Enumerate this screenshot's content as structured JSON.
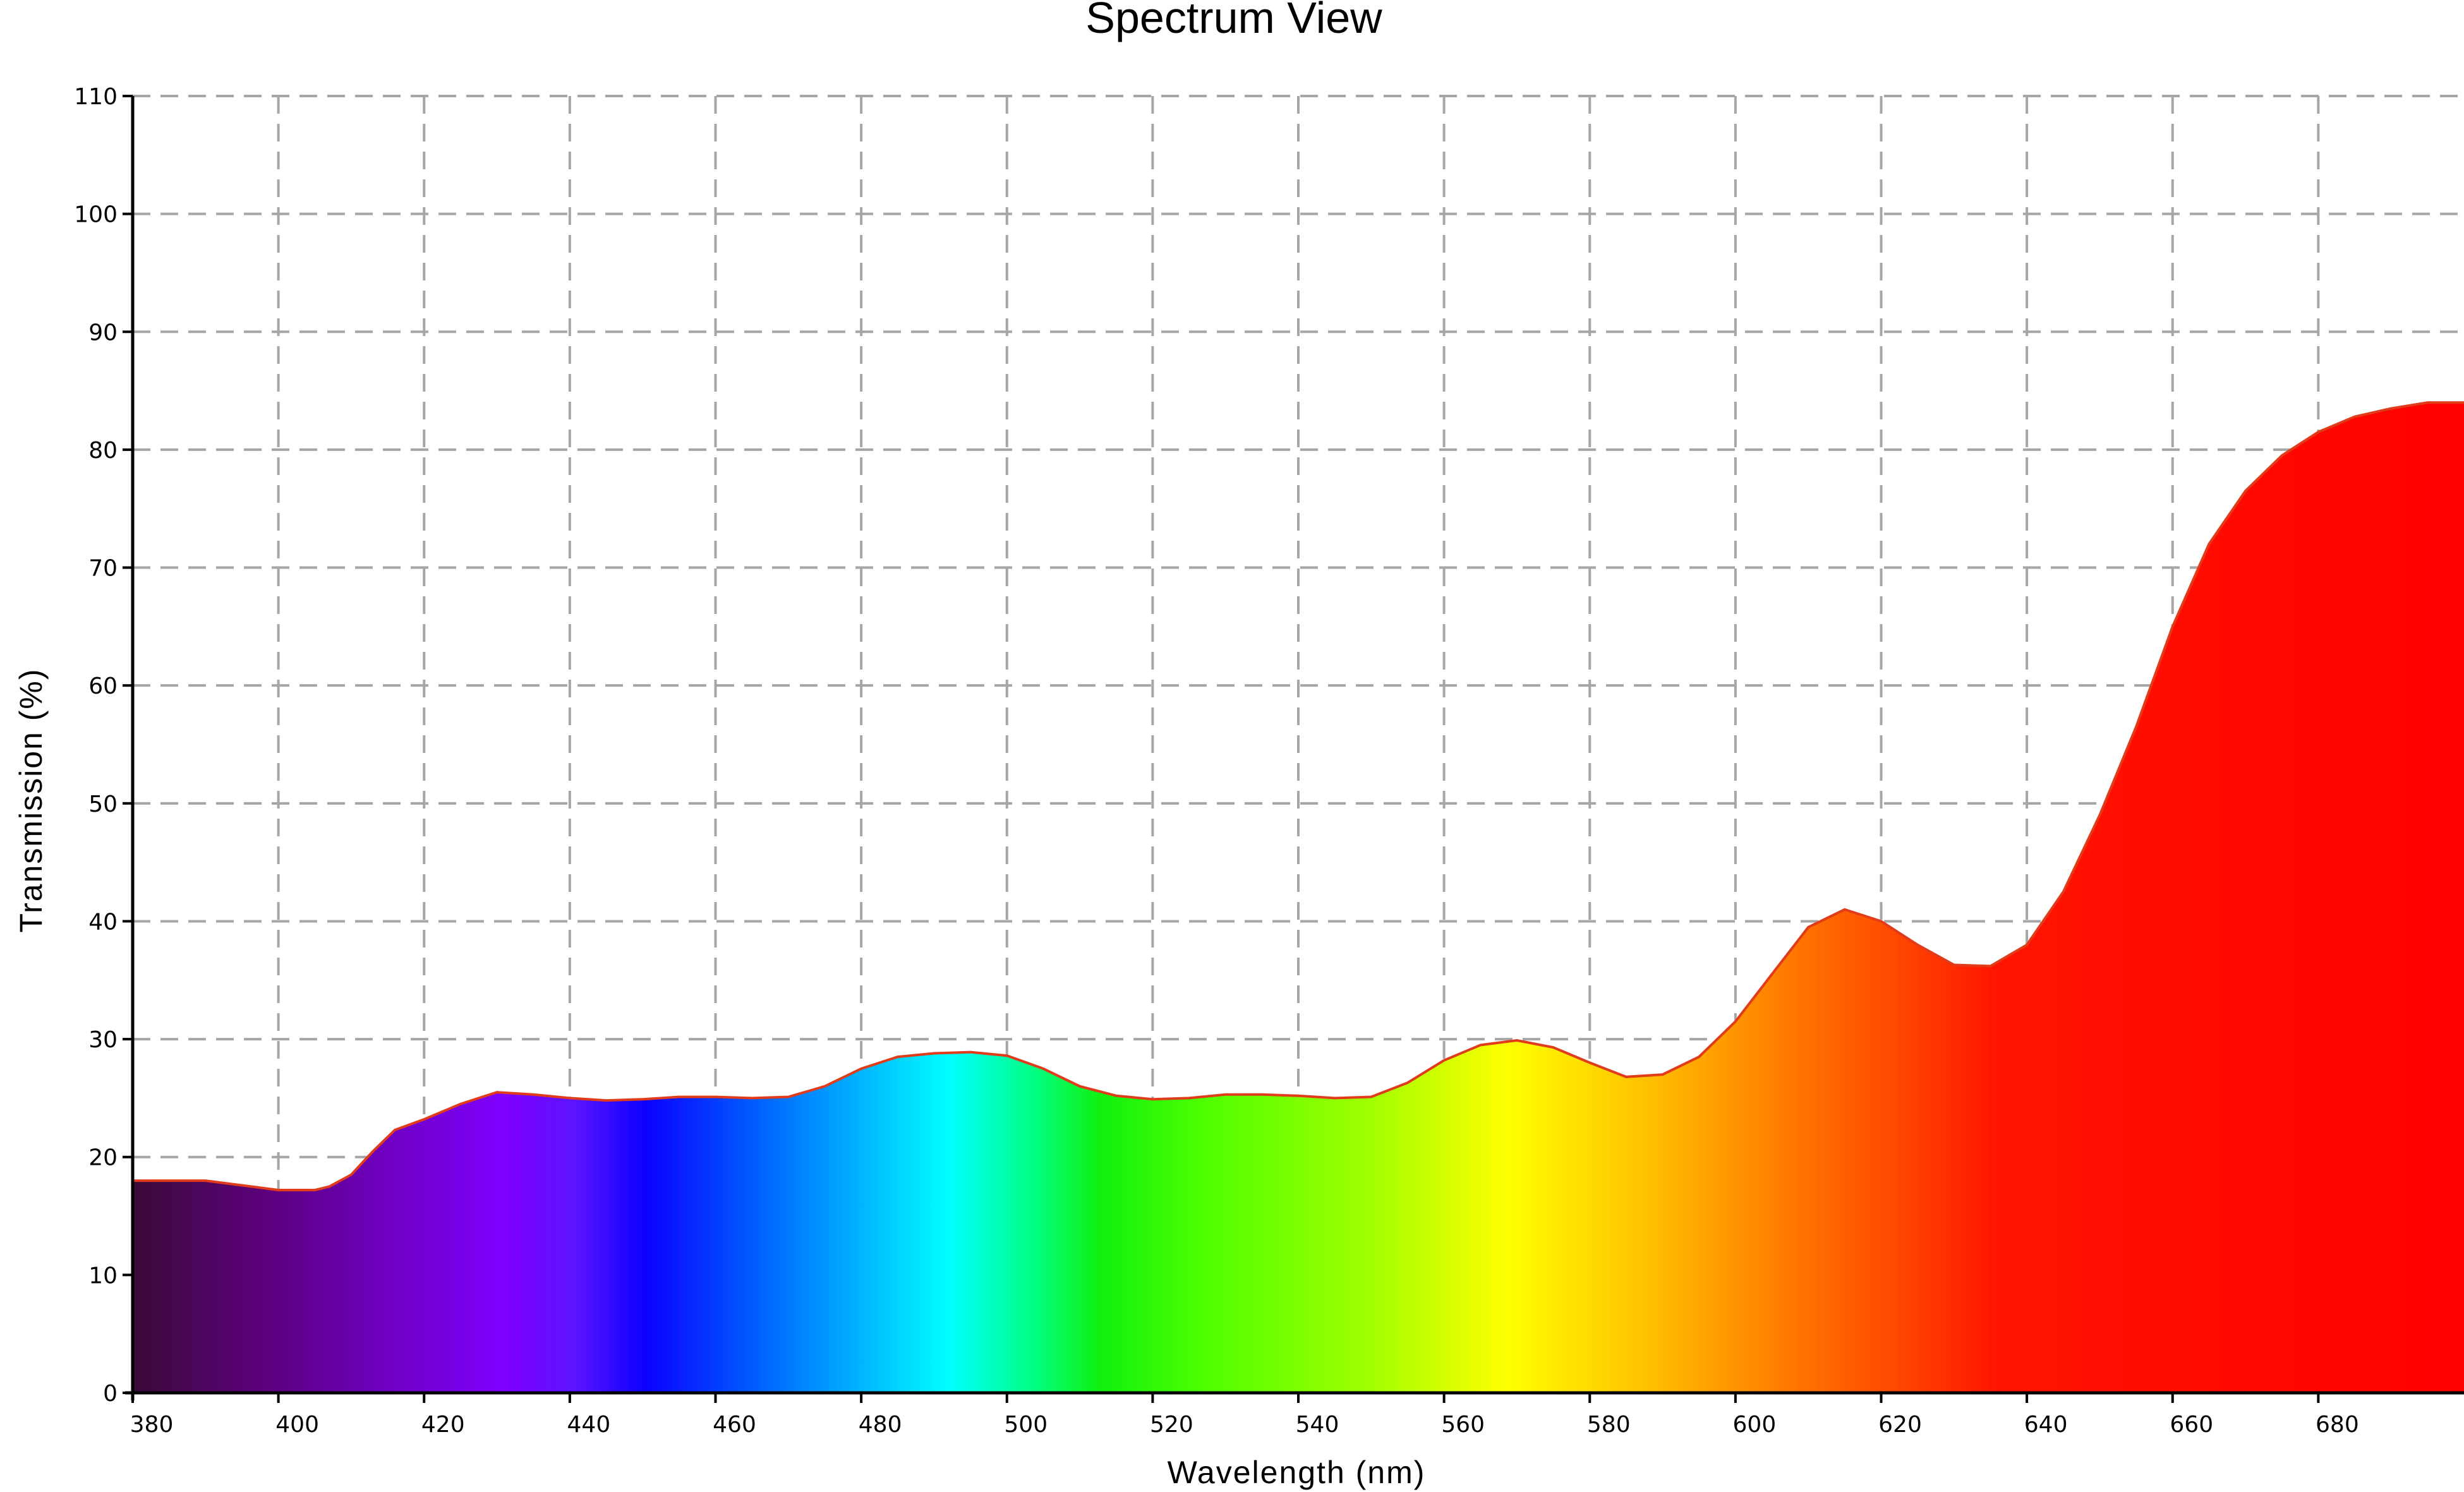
{
  "chart_data": {
    "type": "area",
    "title": "Spectrum View",
    "xlabel": "Wavelength (nm)",
    "ylabel": "Transmission (%)",
    "xlim": [
      380,
      700
    ],
    "ylim": [
      0,
      110
    ],
    "x_ticks": [
      380,
      400,
      420,
      440,
      460,
      480,
      500,
      520,
      540,
      560,
      580,
      600,
      620,
      640,
      660,
      680
    ],
    "y_ticks": [
      0,
      10,
      20,
      30,
      40,
      50,
      60,
      70,
      80,
      90,
      100,
      110
    ],
    "grid": true,
    "fill": "visible-spectrum gradient under the curve",
    "outline_color": "#e03b1a",
    "series": [
      {
        "x": [
          380,
          385,
          390,
          395,
          400,
          405,
          407,
          410,
          413,
          416,
          420,
          425,
          430,
          435,
          440,
          445,
          450,
          455,
          460,
          465,
          470,
          475,
          480,
          485,
          490,
          495,
          500,
          505,
          510,
          515,
          520,
          525,
          530,
          535,
          540,
          545,
          550,
          555,
          560,
          565,
          570,
          575,
          580,
          585,
          590,
          595,
          600,
          605,
          610,
          615,
          620,
          625,
          630,
          635,
          640,
          645,
          650,
          655,
          660,
          665,
          670,
          675,
          680,
          685,
          690,
          695,
          700
        ],
        "y": [
          18.0,
          18.0,
          18.0,
          17.6,
          17.2,
          17.2,
          17.5,
          18.5,
          20.5,
          22.3,
          23.2,
          24.5,
          25.5,
          25.3,
          25.0,
          24.8,
          24.9,
          25.1,
          25.1,
          25.0,
          25.1,
          26.0,
          27.5,
          28.5,
          28.8,
          28.9,
          28.6,
          27.5,
          26.0,
          25.2,
          24.9,
          25.0,
          25.3,
          25.3,
          25.2,
          25.0,
          25.1,
          26.3,
          28.2,
          29.5,
          29.9,
          29.3,
          28.0,
          26.8,
          27.0,
          28.5,
          31.5,
          35.5,
          39.5,
          41.0,
          40.0,
          38.0,
          36.3,
          36.2,
          38.0,
          42.5,
          49.0,
          56.5,
          65.0,
          72.0,
          76.5,
          79.5,
          81.5,
          82.8,
          83.5,
          84.0,
          84.0
        ]
      }
    ]
  }
}
